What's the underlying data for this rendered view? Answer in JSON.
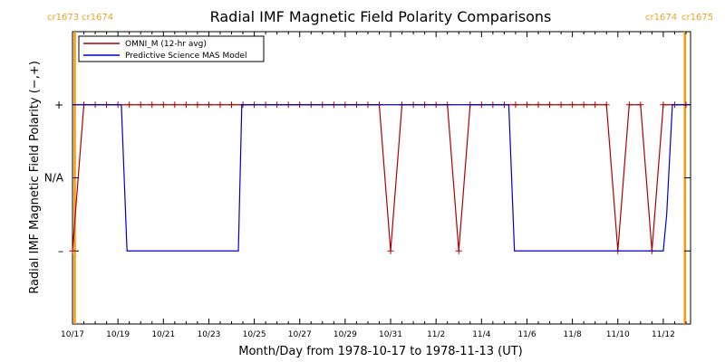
{
  "chart_data": {
    "type": "line",
    "title": "Radial IMF Magnetic Field Polarity Comparisons",
    "xlabel": "Month/Day from 1978-10-17 to 1978-11-13 (UT)",
    "ylabel": "Radial IMF Magnetic Field Polarity (−,+)",
    "x_unit": "days from 1978-10-17 00:00 UT",
    "xlim": [
      0,
      27.2
    ],
    "ylim": [
      -2,
      2
    ],
    "x_tick_values": [
      0,
      2,
      4,
      6,
      8,
      10,
      12,
      14,
      16,
      18,
      20,
      22,
      24,
      26
    ],
    "x_tick_labels": [
      "10/17",
      "10/19",
      "10/21",
      "10/23",
      "10/25",
      "10/27",
      "10/29",
      "10/31",
      "11/2",
      "11/4",
      "11/6",
      "11/8",
      "11/10",
      "11/12"
    ],
    "y_tick_values": [
      1,
      0,
      -1
    ],
    "y_tick_labels": [
      "+",
      "N/A",
      "–"
    ],
    "grid": false,
    "legend_placement": "top-left",
    "carrington_markers": [
      {
        "x": 0.1,
        "label_left": "cr1673",
        "label_right": "cr1674",
        "color": "#ff9900"
      },
      {
        "x": 26.95,
        "label_left": "cr1674",
        "label_right": "cr1675",
        "color": "#ff9900"
      }
    ],
    "series": [
      {
        "name": "OMNI_M (12-hr avg)",
        "color": "#b00000",
        "marker": "+",
        "x": [
          0.0,
          0.5,
          1.0,
          1.5,
          2.0,
          2.5,
          3.0,
          3.5,
          4.0,
          4.5,
          5.0,
          5.5,
          6.0,
          6.5,
          7.0,
          7.5,
          8.0,
          8.5,
          9.0,
          9.5,
          10.0,
          10.5,
          11.0,
          11.5,
          12.0,
          12.5,
          13.0,
          13.5,
          14.0,
          14.5,
          15.0,
          15.5,
          16.0,
          16.5,
          17.0,
          17.5,
          18.0,
          18.5,
          19.0,
          19.5,
          20.0,
          20.5,
          21.0,
          21.5,
          22.0,
          22.5,
          23.0,
          23.5,
          24.0,
          24.5,
          25.0,
          25.5,
          26.0,
          26.5,
          27.0
        ],
        "values": [
          -1,
          1,
          1,
          1,
          1,
          1,
          1,
          1,
          1,
          1,
          1,
          1,
          1,
          1,
          1,
          1,
          1,
          1,
          1,
          1,
          1,
          1,
          1,
          1,
          1,
          1,
          1,
          1,
          -1,
          1,
          1,
          1,
          1,
          1,
          -1,
          1,
          1,
          1,
          1,
          1,
          1,
          1,
          1,
          1,
          1,
          1,
          1,
          1,
          -1,
          1,
          1,
          -1,
          1,
          1,
          1
        ]
      },
      {
        "name": "Predictive Science MAS Model",
        "color": "#0000cc",
        "marker": "",
        "x": [
          0.0,
          2.15,
          2.4,
          7.3,
          7.45,
          19.2,
          19.45,
          26.0,
          26.15,
          26.4,
          27.2
        ],
        "values": [
          1,
          1,
          -1,
          -1,
          1,
          1,
          -1,
          -1,
          -0.5,
          1,
          1
        ]
      }
    ]
  }
}
